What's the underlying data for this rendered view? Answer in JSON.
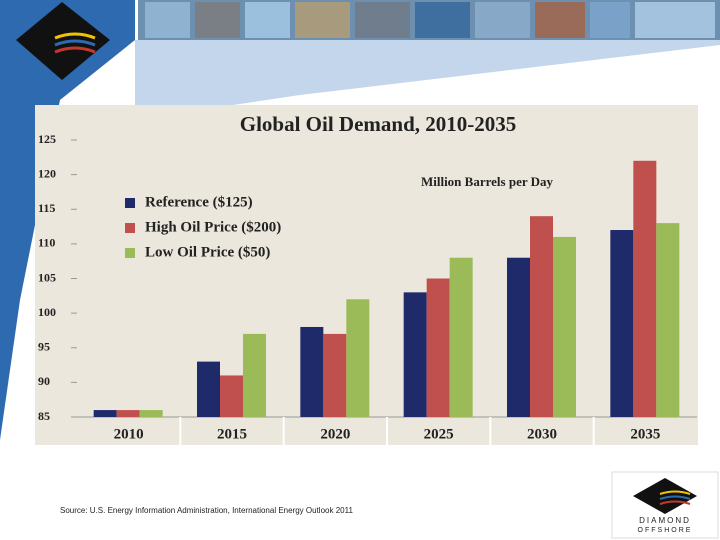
{
  "chart_data": {
    "type": "bar",
    "title": "Global Oil Demand, 2010-2035",
    "annotation": "Million Barrels per Day",
    "categories": [
      "2010",
      "2015",
      "2020",
      "2025",
      "2030",
      "2035"
    ],
    "series": [
      {
        "name": "Reference ($125)",
        "color": "#1f2a6b",
        "values": [
          86,
          93,
          98,
          103,
          108,
          112
        ]
      },
      {
        "name": "High Oil Price ($200)",
        "color": "#c0504d",
        "values": [
          86,
          91,
          97,
          105,
          114,
          122
        ]
      },
      {
        "name": "Low Oil Price ($50)",
        "color": "#9bbb59",
        "values": [
          86,
          97,
          102,
          108,
          111,
          113
        ]
      }
    ],
    "ylim": [
      85,
      125
    ],
    "yticks": [
      85,
      90,
      95,
      100,
      105,
      110,
      115,
      120,
      125
    ],
    "grid": false,
    "legend": "upper-left"
  },
  "source": "Source:  U.S. Energy Information Administration, International Energy Outlook 2011",
  "logo_text": [
    "DIAMOND",
    "OFFSHORE"
  ]
}
